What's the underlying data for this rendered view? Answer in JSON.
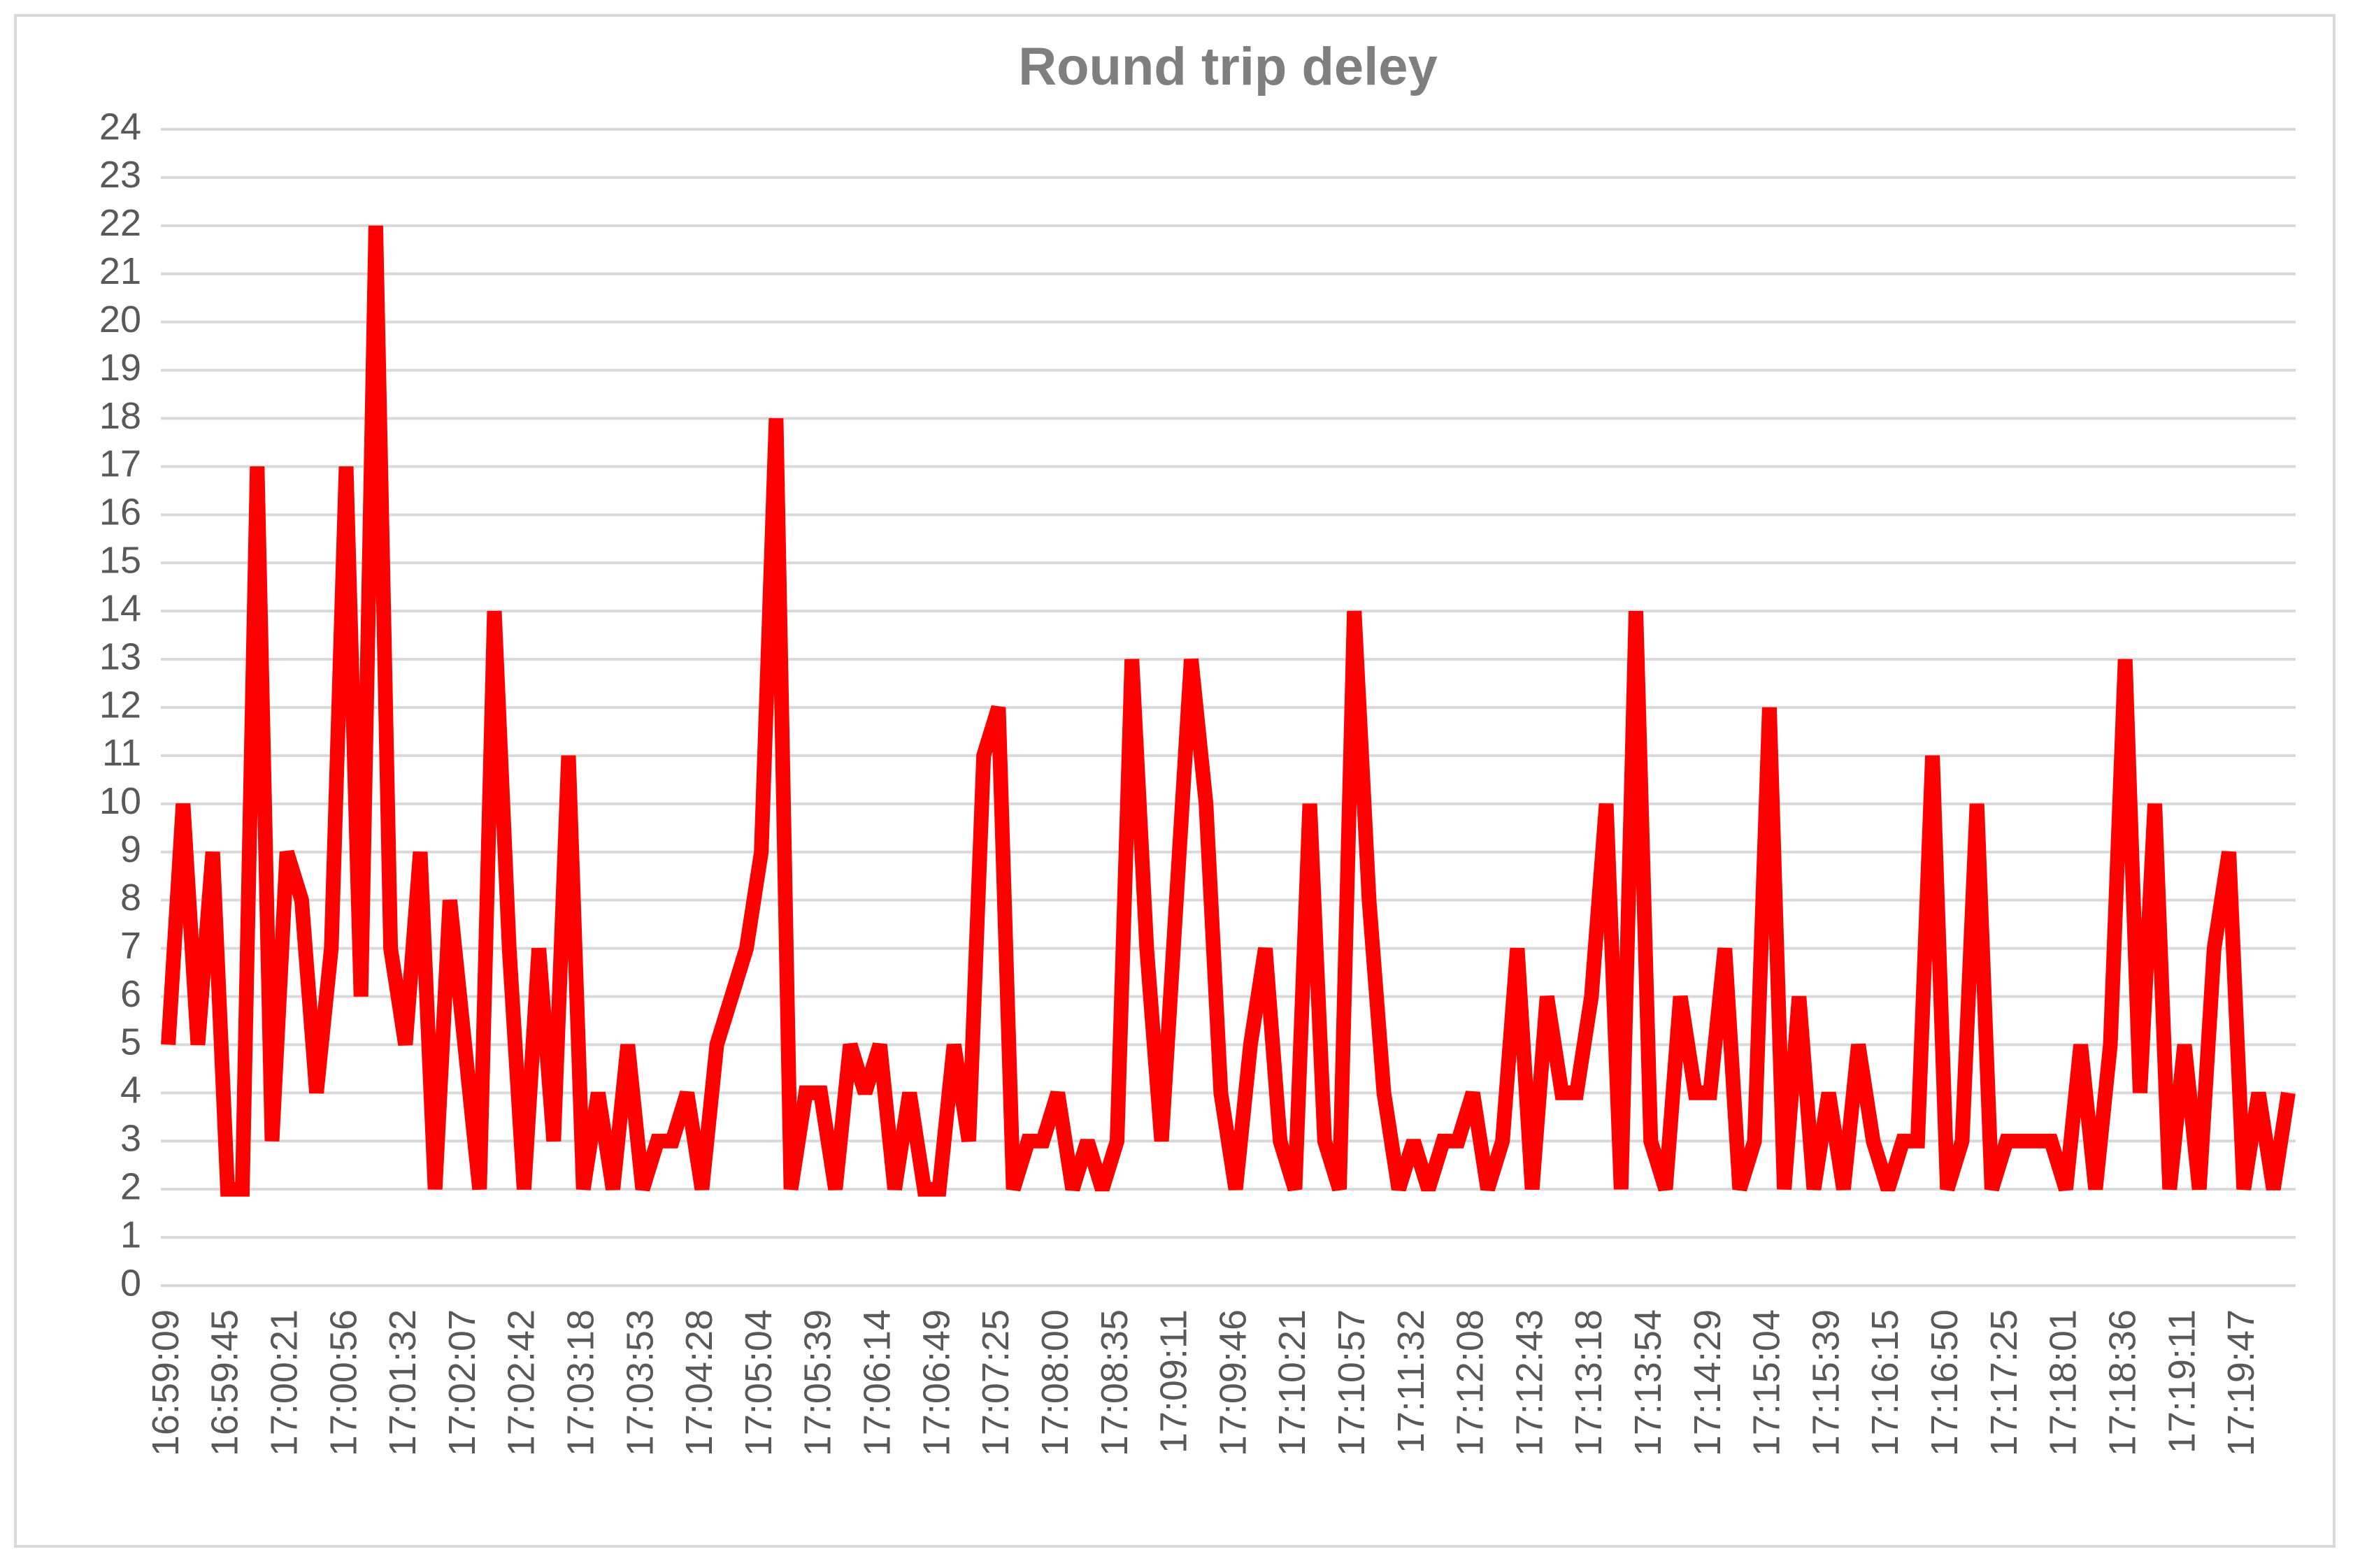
{
  "chart_data": {
    "type": "line",
    "title": "Round trip deley",
    "categories": [
      "16:59:09",
      null,
      null,
      null,
      "16:59:45",
      null,
      null,
      null,
      "17:00:21",
      null,
      null,
      null,
      "17:00:56",
      null,
      null,
      null,
      "17:01:32",
      null,
      null,
      null,
      "17:02:07",
      null,
      null,
      null,
      "17:02:42",
      null,
      null,
      null,
      "17:03:18",
      null,
      null,
      null,
      "17:03:53",
      null,
      null,
      null,
      "17:04:28",
      null,
      null,
      null,
      "17:05:04",
      null,
      null,
      null,
      "17:05:39",
      null,
      null,
      null,
      "17:06:14",
      null,
      null,
      null,
      "17:06:49",
      null,
      null,
      null,
      "17:07:25",
      null,
      null,
      null,
      "17:08:00",
      null,
      null,
      null,
      "17:08:35",
      null,
      null,
      null,
      "17:09:11",
      null,
      null,
      null,
      "17:09:46",
      null,
      null,
      null,
      "17:10:21",
      null,
      null,
      null,
      "17:10:57",
      null,
      null,
      null,
      "17:11:32",
      null,
      null,
      null,
      "17:12:08",
      null,
      null,
      null,
      "17:12:43",
      null,
      null,
      null,
      "17:13:18",
      null,
      null,
      null,
      "17:13:54",
      null,
      null,
      null,
      "17:14:29",
      null,
      null,
      null,
      "17:15:04",
      null,
      null,
      null,
      "17:15:39",
      null,
      null,
      null,
      "17:16:15",
      null,
      null,
      null,
      "17:16:50",
      null,
      null,
      null,
      "17:17:25",
      null,
      null,
      null,
      "17:18:01",
      null,
      null,
      null,
      "17:18:36",
      null,
      null,
      null,
      "17:19:11",
      null,
      null,
      null,
      "17:19:47",
      null,
      null,
      null
    ],
    "series": [
      {
        "color": "#ff0000",
        "values": [
          5,
          10,
          5,
          9,
          2,
          2,
          17,
          3,
          9,
          8,
          4,
          7,
          17,
          6,
          22,
          7,
          5,
          9,
          2,
          8,
          5,
          2,
          14,
          7,
          2,
          7,
          3,
          11,
          2,
          4,
          2,
          5,
          2,
          3,
          3,
          4,
          2,
          5,
          6,
          7,
          9,
          18,
          2,
          4,
          4,
          2,
          5,
          4,
          5,
          2,
          4,
          2,
          2,
          5,
          3,
          11,
          12,
          2,
          3,
          3,
          4,
          2,
          3,
          2,
          3,
          13,
          7,
          3,
          8,
          13,
          10,
          4,
          2,
          5,
          7,
          3,
          2,
          10,
          3,
          2,
          14,
          8,
          4,
          2,
          3,
          2,
          3,
          3,
          4,
          2,
          3,
          7,
          2,
          6,
          4,
          4,
          6,
          10,
          2,
          14,
          3,
          2,
          6,
          4,
          4,
          7,
          2,
          3,
          12,
          2,
          6,
          2,
          4,
          2,
          5,
          3,
          2,
          3,
          3,
          11,
          2,
          3,
          10,
          2,
          3,
          3,
          3,
          3,
          2,
          5,
          2,
          5,
          13,
          4,
          10,
          2,
          5,
          2,
          7,
          9,
          2,
          4,
          2,
          4
        ]
      }
    ],
    "ylim": [
      0,
      24
    ],
    "yticks": [
      0,
      1,
      2,
      3,
      4,
      5,
      6,
      7,
      8,
      9,
      10,
      11,
      12,
      13,
      14,
      15,
      16,
      17,
      18,
      19,
      20,
      21,
      22,
      23,
      24
    ],
    "grid": true
  }
}
